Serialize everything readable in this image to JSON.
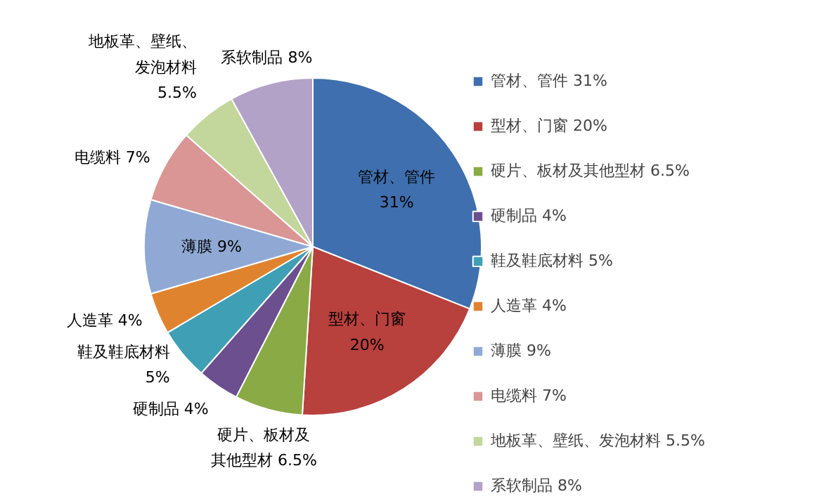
{
  "chart_data": {
    "type": "pie",
    "categories": [
      "管材、管件 31%",
      "型材、门窗 20%",
      "硬片、板材及其他型材 6.5%",
      "硬制品 4%",
      "鞋及鞋底材料 5%",
      "人造革 4%",
      "薄膜 9%",
      "电缆料 7%",
      "地板革、壁纸、发泡材料 5.5%",
      "系软制品 8%"
    ],
    "values": [
      31,
      20,
      6.5,
      4,
      5,
      4,
      9,
      7,
      5.5,
      8
    ],
    "colors": [
      "#3f6fae",
      "#b8403d",
      "#8aaa45",
      "#6b4f8f",
      "#3e9fb5",
      "#e0832f",
      "#90a9d4",
      "#d99694",
      "#c3d69b",
      "#b2a2c7"
    ],
    "value_labels": [
      "管材、管件\n31%",
      "型材、门窗\n20%",
      "硬片、板材及其他型材 6.5%",
      "硬制品 4%",
      "鞋及鞋底材料\n5%",
      "人造革 4%",
      "薄膜 9%",
      "电缆料 7%",
      "地板革、壁纸、发泡材料\n5.5%",
      "系软制品 8%"
    ],
    "legend": "right"
  }
}
